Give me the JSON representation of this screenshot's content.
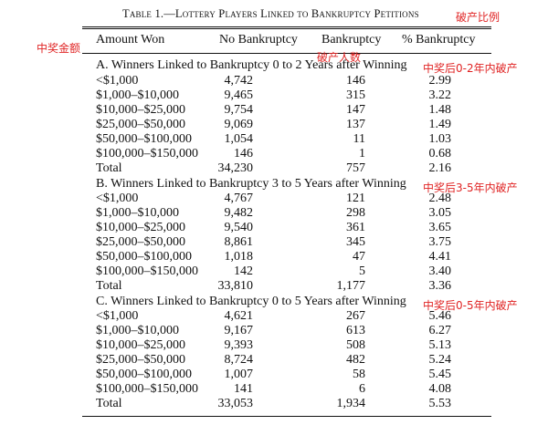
{
  "table": {
    "title_prefix": "Table 1.",
    "title_rest": "—Lottery Players Linked to Bankruptcy Petitions",
    "headers": {
      "amount": "Amount Won",
      "no_bankruptcy": "No Bankruptcy",
      "bankruptcy": "Bankruptcy",
      "pct": "% Bankruptcy"
    },
    "sections": [
      {
        "title": "A. Winners Linked to Bankruptcy 0 to 2 Years after Winning",
        "rows": [
          {
            "amount": "<$1,000",
            "no_bankruptcy": "4,742",
            "bankruptcy": "146",
            "pct": "2.99"
          },
          {
            "amount": "$1,000–$10,000",
            "no_bankruptcy": "9,465",
            "bankruptcy": "315",
            "pct": "3.22"
          },
          {
            "amount": "$10,000–$25,000",
            "no_bankruptcy": "9,754",
            "bankruptcy": "147",
            "pct": "1.48"
          },
          {
            "amount": "$25,000–$50,000",
            "no_bankruptcy": "9,069",
            "bankruptcy": "137",
            "pct": "1.49"
          },
          {
            "amount": "$50,000–$100,000",
            "no_bankruptcy": "1,054",
            "bankruptcy": "11",
            "pct": "1.03"
          },
          {
            "amount": "$100,000–$150,000",
            "no_bankruptcy": "146",
            "bankruptcy": "1",
            "pct": "0.68"
          },
          {
            "amount": "Total",
            "no_bankruptcy": "34,230",
            "bankruptcy": "757",
            "pct": "2.16"
          }
        ]
      },
      {
        "title": "B. Winners Linked to Bankruptcy 3 to 5 Years after Winning",
        "rows": [
          {
            "amount": "<$1,000",
            "no_bankruptcy": "4,767",
            "bankruptcy": "121",
            "pct": "2.48"
          },
          {
            "amount": "$1,000–$10,000",
            "no_bankruptcy": "9,482",
            "bankruptcy": "298",
            "pct": "3.05"
          },
          {
            "amount": "$10,000–$25,000",
            "no_bankruptcy": "9,540",
            "bankruptcy": "361",
            "pct": "3.65"
          },
          {
            "amount": "$25,000–$50,000",
            "no_bankruptcy": "8,861",
            "bankruptcy": "345",
            "pct": "3.75"
          },
          {
            "amount": "$50,000–$100,000",
            "no_bankruptcy": "1,018",
            "bankruptcy": "47",
            "pct": "4.41"
          },
          {
            "amount": "$100,000–$150,000",
            "no_bankruptcy": "142",
            "bankruptcy": "5",
            "pct": "3.40"
          },
          {
            "amount": "Total",
            "no_bankruptcy": "33,810",
            "bankruptcy": "1,177",
            "pct": "3.36"
          }
        ]
      },
      {
        "title": "C. Winners Linked to Bankruptcy 0 to 5 Years after Winning",
        "rows": [
          {
            "amount": "<$1,000",
            "no_bankruptcy": "4,621",
            "bankruptcy": "267",
            "pct": "5.46"
          },
          {
            "amount": "$1,000–$10,000",
            "no_bankruptcy": "9,167",
            "bankruptcy": "613",
            "pct": "6.27"
          },
          {
            "amount": "$10,000–$25,000",
            "no_bankruptcy": "9,393",
            "bankruptcy": "508",
            "pct": "5.13"
          },
          {
            "amount": "$25,000–$50,000",
            "no_bankruptcy": "8,724",
            "bankruptcy": "482",
            "pct": "5.24"
          },
          {
            "amount": "$50,000–$100,000",
            "no_bankruptcy": "1,007",
            "bankruptcy": "58",
            "pct": "5.45"
          },
          {
            "amount": "$100,000–$150,000",
            "no_bankruptcy": "141",
            "bankruptcy": "6",
            "pct": "4.08"
          },
          {
            "amount": "Total",
            "no_bankruptcy": "33,053",
            "bankruptcy": "1,934",
            "pct": "5.53"
          }
        ]
      }
    ]
  },
  "annotations": {
    "color": "#e02424",
    "pct_ratio": "破产比例",
    "amount_won": "中奖金额",
    "bankrupt_count": "破产人数",
    "section_a": "中奖后0-2年内破产",
    "section_b": "中奖后3-5年内破产",
    "section_c": "中奖后0-5年内破产"
  }
}
